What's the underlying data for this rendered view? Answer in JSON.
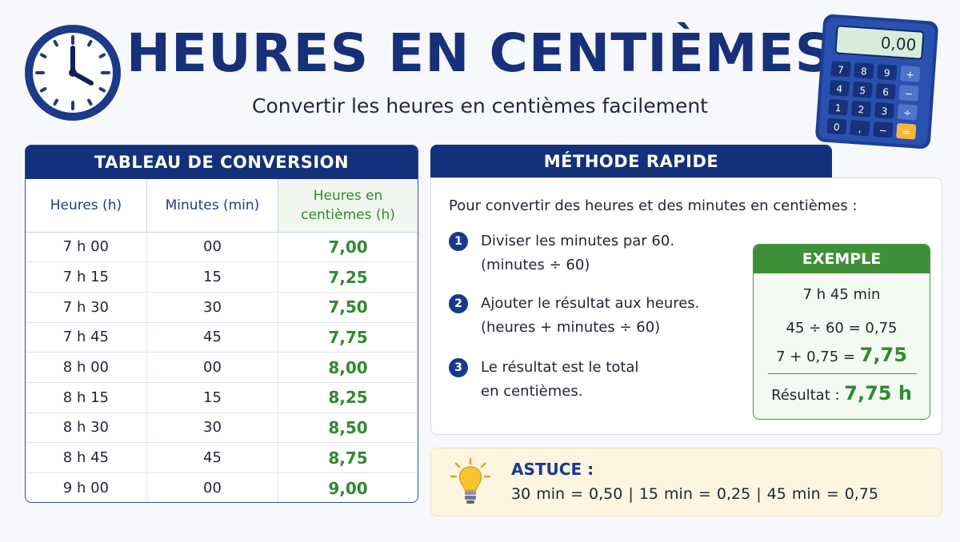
{
  "header": {
    "title": "HEURES EN CENTIÈMES",
    "subtitle": "Convertir les heures en centièmes facilement"
  },
  "calculator": {
    "display": "0,00",
    "keys": [
      "7",
      "8",
      "9",
      "+",
      "4",
      "5",
      "6",
      "−",
      "1",
      "2",
      "3",
      "÷",
      "0",
      ",",
      "−",
      "="
    ]
  },
  "table": {
    "title": "TABLEAU DE CONVERSION",
    "headers": [
      "Heures (h)",
      "Minutes (min)",
      "Heures en",
      "centièmes (h)"
    ],
    "rows": [
      [
        "7 h 00",
        "00",
        "7,00"
      ],
      [
        "7 h 15",
        "15",
        "7,25"
      ],
      [
        "7 h 30",
        "30",
        "7,50"
      ],
      [
        "7 h 45",
        "45",
        "7,75"
      ],
      [
        "8 h 00",
        "00",
        "8,00"
      ],
      [
        "8 h 15",
        "15",
        "8,25"
      ],
      [
        "8 h 30",
        "30",
        "8,50"
      ],
      [
        "8 h 45",
        "45",
        "8,75"
      ],
      [
        "9 h 00",
        "00",
        "9,00"
      ]
    ]
  },
  "method": {
    "title": "MÉTHODE RAPIDE",
    "intro": "Pour convertir des heures et des minutes en centièmes :",
    "steps": [
      {
        "num": "1",
        "line1": "Diviser les minutes par 60.",
        "line2": "(minutes ÷ 60)"
      },
      {
        "num": "2",
        "line1": "Ajouter le résultat aux heures.",
        "line2": "(heures + minutes ÷ 60)"
      },
      {
        "num": "3",
        "line1": "Le résultat est le total",
        "line2": "en centièmes."
      }
    ],
    "example": {
      "title": "EXEMPLE",
      "time": "7 h 45 min",
      "calc1": "45 ÷ 60 = 0,75",
      "calc2_prefix": "7 + 0,75 = ",
      "calc2_value": "7,75",
      "result_label": "Résultat : ",
      "result_value": "7,75 h"
    }
  },
  "tip": {
    "title": "ASTUCE :",
    "text": "30 min = 0,50  |  15 min = 0,25  |  45 min = 0,75"
  },
  "colors": {
    "navy": "#13307a",
    "green": "#2f8a2f",
    "tip_bg": "#fdf5df"
  }
}
